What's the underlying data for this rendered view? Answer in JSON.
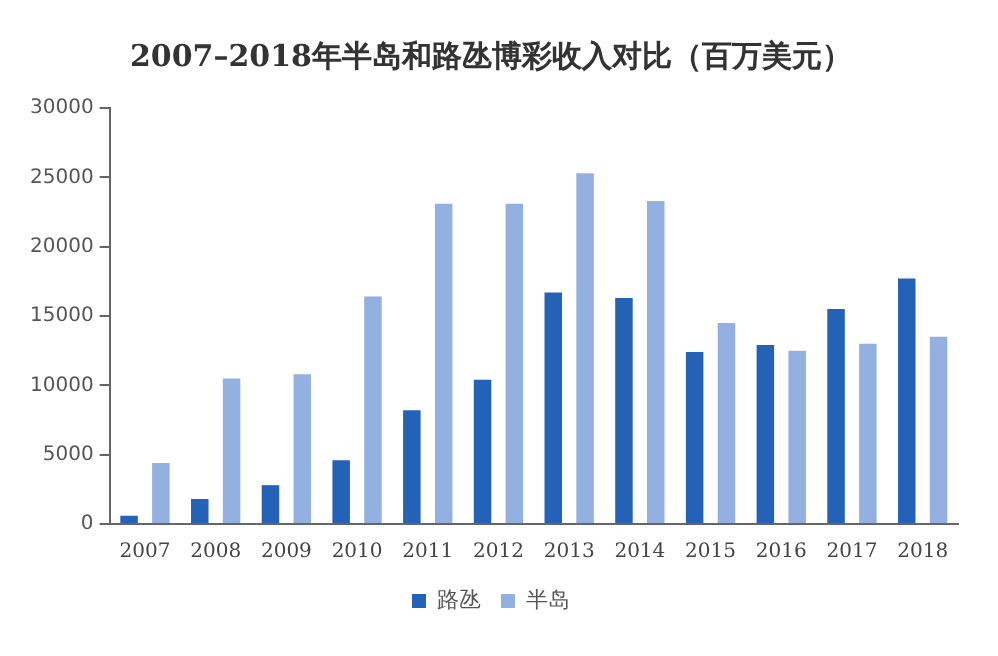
{
  "chart_data": {
    "type": "bar",
    "title": "2007–2018年半岛和路氹博彩收入对比（百万美元）",
    "categories": [
      "2007",
      "2008",
      "2009",
      "2010",
      "2011",
      "2012",
      "2013",
      "2014",
      "2015",
      "2016",
      "2017",
      "2018"
    ],
    "series": [
      {
        "name": "路氹",
        "color": "#2462b8",
        "values": [
          600,
          1800,
          2800,
          4600,
          8200,
          10400,
          16700,
          16300,
          12400,
          12900,
          15500,
          17700
        ]
      },
      {
        "name": "半岛",
        "color": "#92b0e0",
        "values": [
          4400,
          10500,
          10800,
          16400,
          23100,
          23100,
          25300,
          23300,
          14500,
          12500,
          13000,
          13500
        ]
      }
    ],
    "ylim": [
      0,
      30000
    ],
    "yticks": [
      0,
      5000,
      10000,
      15000,
      20000,
      25000,
      30000
    ],
    "grid": false,
    "legend": "bottom"
  }
}
